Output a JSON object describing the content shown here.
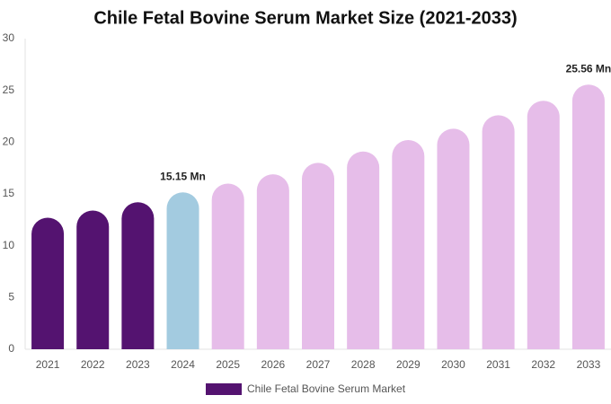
{
  "chart_data": {
    "type": "bar",
    "title": "Chile Fetal Bovine Serum Market Size (2021-2033)",
    "categories": [
      "2021",
      "2022",
      "2023",
      "2024",
      "2025",
      "2026",
      "2027",
      "2028",
      "2029",
      "2030",
      "2031",
      "2032",
      "2033"
    ],
    "series": [
      {
        "name": "Chile Fetal Bovine Serum Market",
        "color": "#541370",
        "values": [
          12.7,
          13.4,
          14.2,
          15.15,
          16.0,
          16.9,
          18.0,
          19.1,
          20.2,
          21.3,
          22.6,
          24.0,
          25.56
        ],
        "value_labels": [
          null,
          null,
          null,
          "15.15 Mn",
          null,
          null,
          null,
          null,
          null,
          null,
          null,
          null,
          "25.56 Mn"
        ],
        "colors": [
          "#541370",
          "#541370",
          "#541370",
          "#a3cbe0",
          "#e6bde9",
          "#e6bde9",
          "#e6bde9",
          "#e6bde9",
          "#e6bde9",
          "#e6bde9",
          "#e6bde9",
          "#e6bde9",
          "#e6bde9"
        ]
      }
    ],
    "ylim": [
      0,
      30
    ],
    "yticks": [
      0,
      5,
      10,
      15,
      20,
      25,
      30
    ],
    "grid": false,
    "legend": "bottom"
  }
}
